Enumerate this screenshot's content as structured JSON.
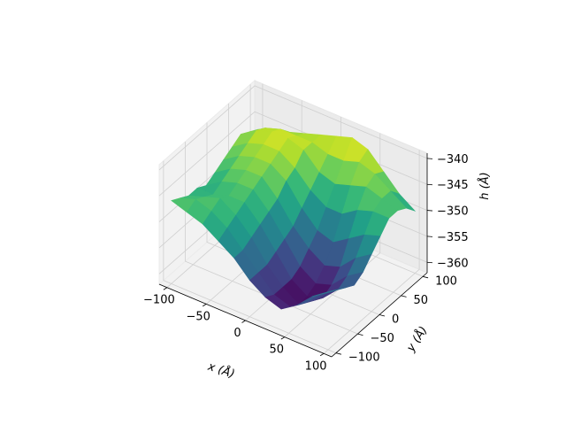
{
  "chart_data": {
    "type": "surface",
    "title": "",
    "colormap": "viridis",
    "xlabel": "x (Å)",
    "ylabel": "y (Å)",
    "zlabel": "h (Å)",
    "xlim": [
      -110,
      110
    ],
    "ylim": [
      -110,
      110
    ],
    "zlim": [
      -362,
      -339
    ],
    "xticks": [
      -100,
      -50,
      0,
      50,
      100
    ],
    "yticks": [
      -100,
      -50,
      0,
      50,
      100
    ],
    "zticks": [
      -360,
      -355,
      -350,
      -345,
      -340
    ],
    "xtick_labels": [
      "−100",
      "−50",
      "0",
      "50",
      "100"
    ],
    "ytick_labels": [
      "−100",
      "−50",
      "0",
      "50",
      "100"
    ],
    "ztick_labels": [
      "−360",
      "−355",
      "−350",
      "−345",
      "−340"
    ],
    "grid": true,
    "x": [
      -100,
      -80,
      -60,
      -40,
      -20,
      0,
      20,
      40,
      60,
      80,
      100
    ],
    "y": [
      -100,
      -80,
      -60,
      -40,
      -20,
      0,
      20,
      40,
      60,
      80,
      100
    ],
    "z": [
      [
        -346,
        -347,
        -348,
        -350,
        -352,
        -355,
        -357,
        -358,
        -356,
        -353,
        -351
      ],
      [
        -347,
        -346,
        -347,
        -349,
        -352,
        -355,
        -358,
        -359,
        -357,
        -354,
        -352
      ],
      [
        -348,
        -347,
        -346,
        -348,
        -351,
        -355,
        -358,
        -360,
        -358,
        -355,
        -353
      ],
      [
        -348,
        -348,
        -347,
        -347,
        -350,
        -354,
        -358,
        -360,
        -359,
        -356,
        -354
      ],
      [
        -349,
        -347,
        -346,
        -346,
        -349,
        -353,
        -357,
        -359,
        -358,
        -355,
        -353
      ],
      [
        -348,
        -346,
        -345,
        -345,
        -348,
        -352,
        -355,
        -357,
        -356,
        -353,
        -351
      ],
      [
        -347,
        -345,
        -344,
        -344,
        -346,
        -350,
        -353,
        -354,
        -352,
        -350,
        -349
      ],
      [
        -346,
        -344,
        -343,
        -343,
        -345,
        -348,
        -350,
        -350,
        -348,
        -347,
        -347
      ],
      [
        -345,
        -343,
        -342,
        -342,
        -343,
        -346,
        -347,
        -346,
        -345,
        -346,
        -347
      ],
      [
        -346,
        -344,
        -343,
        -343,
        -343,
        -344,
        -344,
        -343,
        -344,
        -346,
        -348
      ],
      [
        -347,
        -346,
        -345,
        -344,
        -343,
        -342,
        -341,
        -342,
        -345,
        -348,
        -350
      ]
    ]
  }
}
